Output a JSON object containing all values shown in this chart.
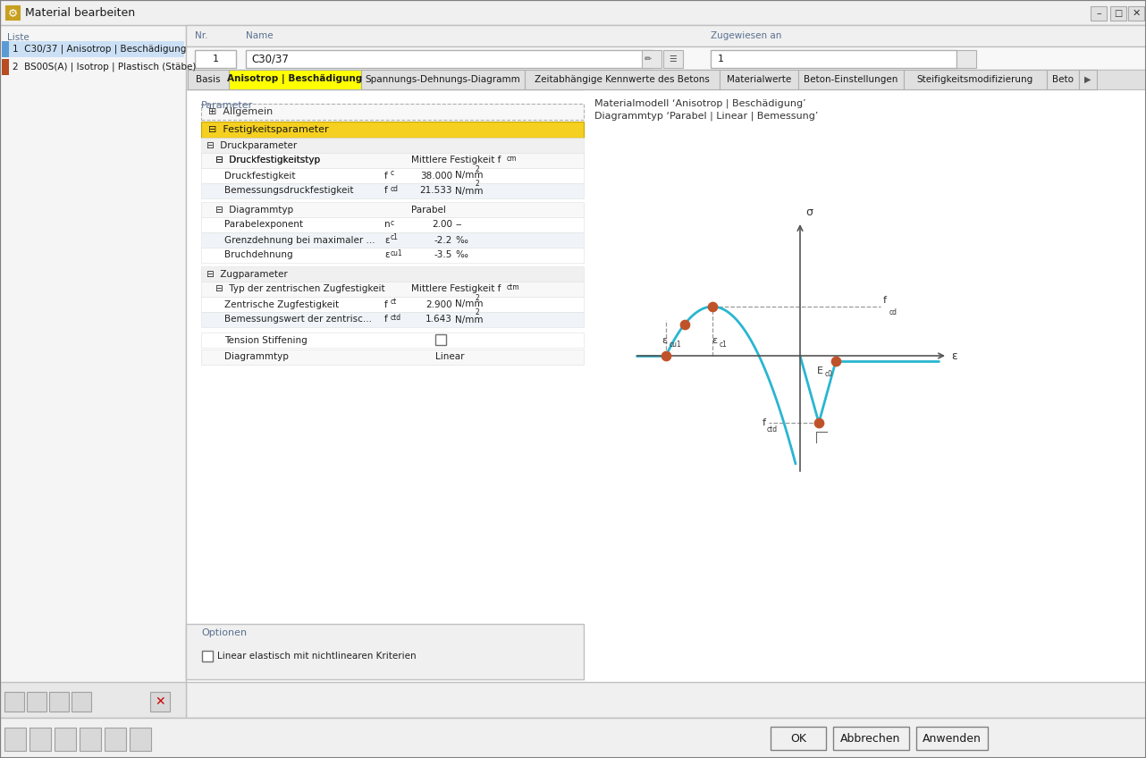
{
  "title": "Material bearbeiten",
  "window_bg": "#f0f0f0",
  "curve_color": "#29b6d0",
  "dot_color": "#c0522a",
  "axis_color": "#555555",
  "model_text_line1": "Materialmodell ‘Anisotrop | Beschädigung’",
  "model_text_line2": "Diagrammtyp ‘Parabel | Linear | Bemessung’"
}
